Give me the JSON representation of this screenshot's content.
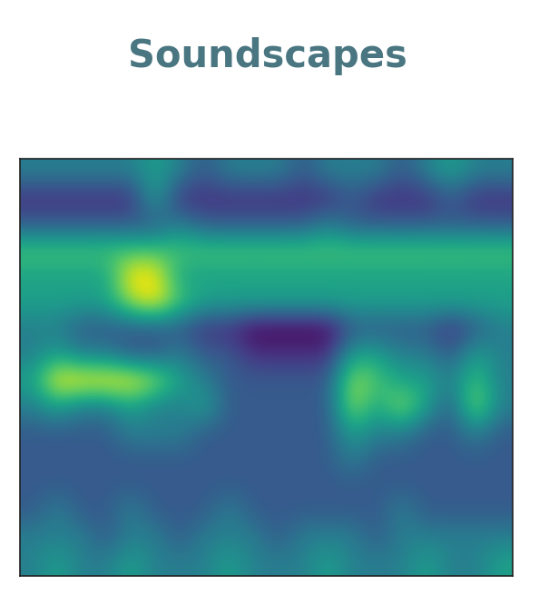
{
  "chart_data": {
    "type": "heatmap",
    "title": "Soundscapes",
    "color": "viridis",
    "tick_labels": false,
    "cells": [
      [
        5,
        5,
        5,
        5,
        5,
        6,
        5,
        4,
        5,
        5,
        5,
        4,
        5,
        5,
        5,
        4,
        5,
        6,
        5,
        5
      ],
      [
        3,
        3,
        3,
        3,
        3,
        6,
        3,
        3,
        3,
        3,
        3,
        3,
        3,
        4,
        3,
        3,
        3,
        4,
        3,
        3
      ],
      [
        4,
        4,
        4,
        4,
        4,
        4,
        5,
        4,
        4,
        4,
        4,
        4,
        5,
        4,
        4,
        4,
        4,
        4,
        4,
        4
      ],
      [
        7,
        7,
        7,
        7,
        7,
        7,
        7,
        7,
        7,
        7,
        7,
        7,
        7,
        7,
        7,
        7,
        7,
        7,
        7,
        7
      ],
      [
        6,
        6,
        6,
        6,
        9,
        9,
        6,
        6,
        6,
        6,
        6,
        6,
        6,
        6,
        6,
        6,
        6,
        6,
        6,
        6
      ],
      [
        6,
        6,
        6,
        6,
        8,
        9,
        7,
        6,
        6,
        6,
        6,
        6,
        6,
        6,
        6,
        6,
        6,
        6,
        6,
        6
      ],
      [
        5,
        5,
        4,
        4,
        4,
        4,
        4,
        3,
        3,
        2,
        2,
        2,
        2,
        4,
        4,
        4,
        4,
        3,
        4,
        5
      ],
      [
        5,
        6,
        5,
        5,
        4,
        4,
        5,
        4,
        4,
        3,
        3,
        3,
        3,
        6,
        6,
        5,
        5,
        4,
        6,
        5
      ],
      [
        6,
        9,
        9,
        9,
        9,
        8,
        6,
        5,
        4,
        4,
        4,
        4,
        4,
        8,
        7,
        6,
        6,
        5,
        7,
        5
      ],
      [
        5,
        6,
        5,
        5,
        6,
        5,
        5,
        6,
        4,
        4,
        4,
        4,
        4,
        8,
        6,
        8,
        6,
        4,
        8,
        5
      ],
      [
        4,
        4,
        4,
        4,
        5,
        5,
        5,
        4,
        4,
        4,
        4,
        4,
        4,
        6,
        5,
        5,
        4,
        4,
        5,
        4
      ],
      [
        4,
        4,
        4,
        4,
        4,
        4,
        4,
        4,
        4,
        4,
        4,
        4,
        4,
        5,
        4,
        4,
        4,
        4,
        4,
        4
      ],
      [
        4,
        4,
        4,
        4,
        4,
        4,
        4,
        4,
        4,
        4,
        4,
        4,
        4,
        4,
        4,
        4,
        4,
        4,
        4,
        4
      ],
      [
        4,
        5,
        4,
        4,
        5,
        4,
        4,
        4,
        5,
        4,
        4,
        4,
        4,
        4,
        4,
        5,
        4,
        4,
        4,
        4
      ],
      [
        5,
        5,
        5,
        4,
        5,
        5,
        4,
        5,
        5,
        5,
        4,
        5,
        5,
        5,
        4,
        5,
        5,
        5,
        5,
        5
      ],
      [
        5,
        6,
        5,
        5,
        6,
        5,
        5,
        5,
        6,
        5,
        5,
        5,
        6,
        5,
        5,
        5,
        6,
        5,
        5,
        6
      ]
    ]
  }
}
